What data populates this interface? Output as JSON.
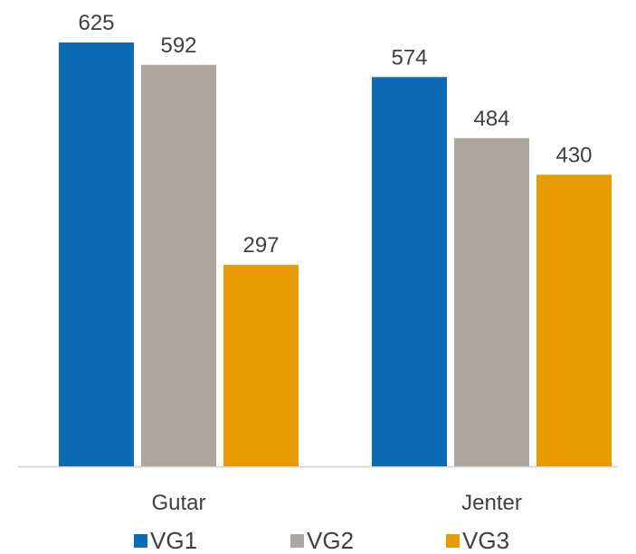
{
  "chart_data": {
    "type": "bar",
    "title": "",
    "xlabel": "",
    "ylabel": "",
    "categories": [
      "Gutar",
      "Jenter"
    ],
    "series": [
      {
        "name": "VG1",
        "values": [
          625,
          574
        ],
        "color": "#0b6bb5"
      },
      {
        "name": "VG2",
        "values": [
          592,
          484
        ],
        "color": "#ada7a0"
      },
      {
        "name": "VG3",
        "values": [
          297,
          430
        ],
        "color": "#e99a00"
      }
    ],
    "ylim": [
      0,
      625
    ],
    "grid": false,
    "legend": "bottom"
  }
}
